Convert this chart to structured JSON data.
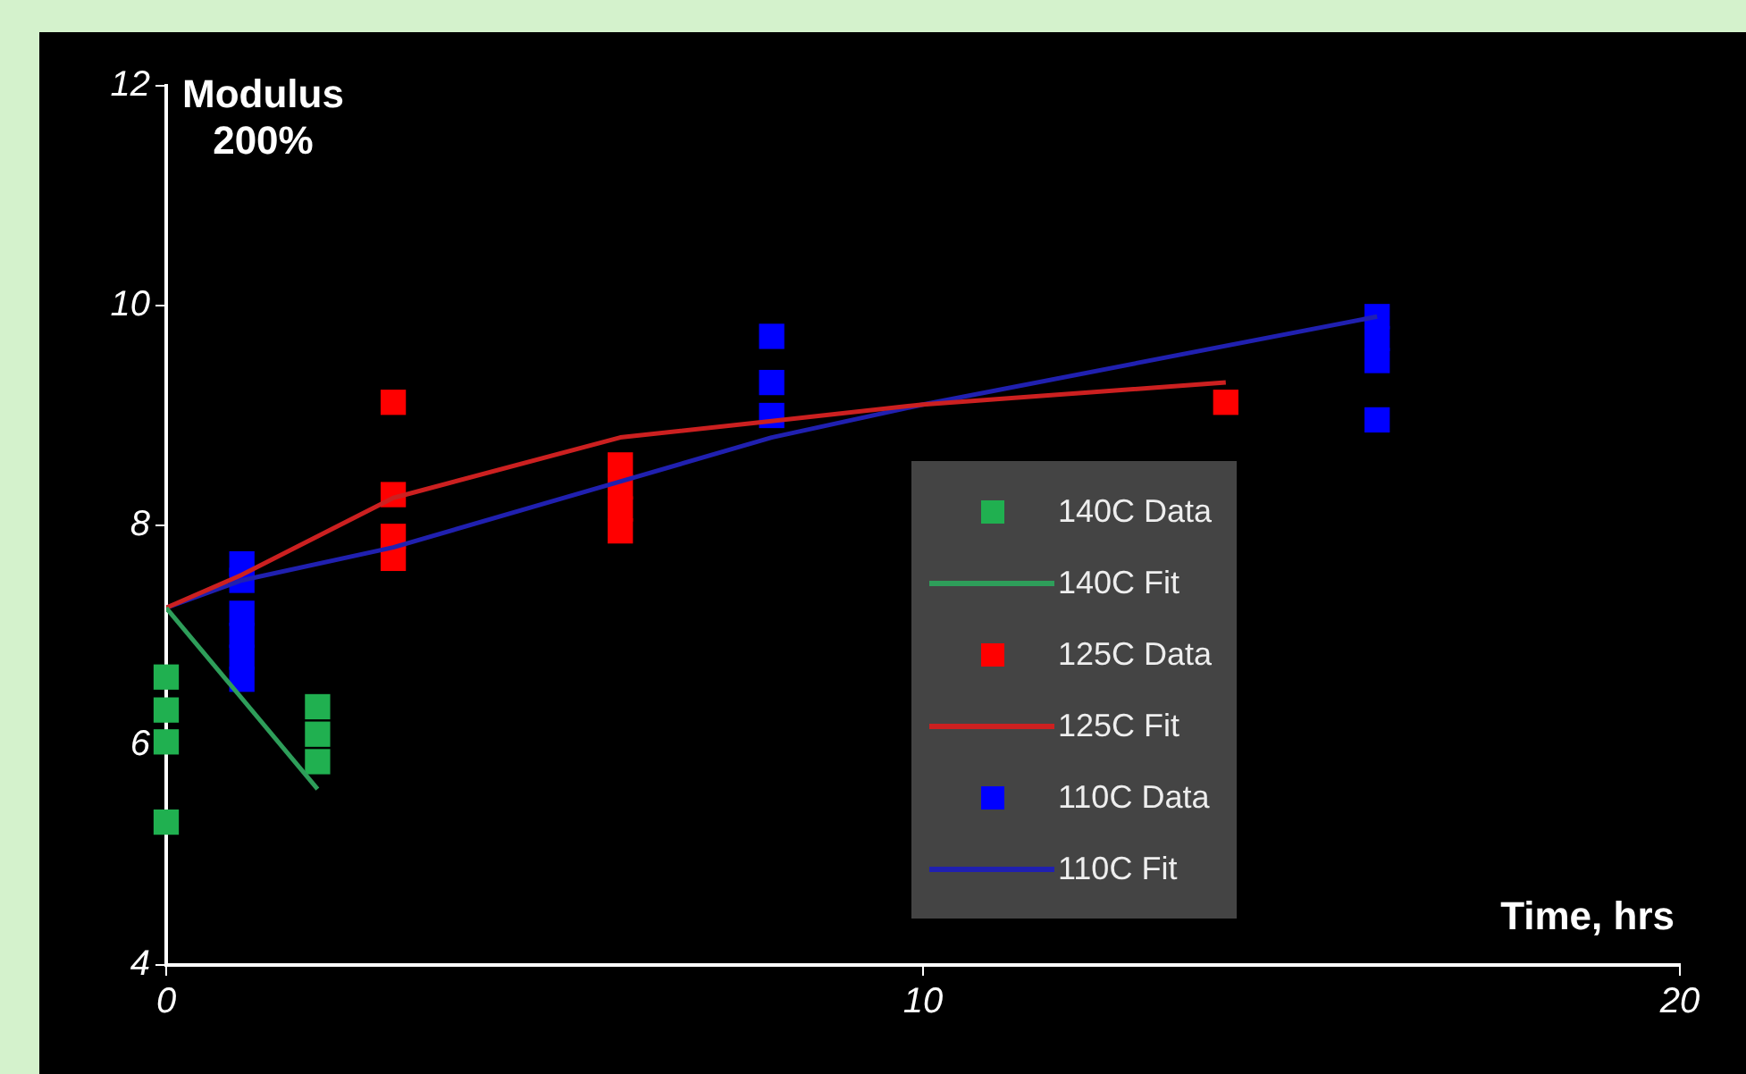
{
  "chart_data": {
    "type": "scatter",
    "title": "Modulus",
    "subtitle": "200%",
    "xlabel": "Time, hrs",
    "xlim": [
      0,
      20
    ],
    "xticks": [
      0,
      10,
      20
    ],
    "ylim": [
      4,
      12
    ],
    "yticks": [
      4,
      6,
      8,
      10,
      12
    ],
    "grid": false,
    "legend": "right",
    "series": [
      {
        "name": "140C Data",
        "type": "scatter",
        "marker": "square",
        "color": "#20b050",
        "x": [
          0,
          0,
          0,
          0,
          2,
          2,
          2
        ],
        "values": [
          6.62,
          6.32,
          6.03,
          5.3,
          6.35,
          6.1,
          5.85
        ]
      },
      {
        "name": "140C Fit",
        "type": "line",
        "color": "#2e9e5a",
        "x": [
          0,
          2
        ],
        "values": [
          7.25,
          5.6
        ]
      },
      {
        "name": "125C Data",
        "type": "scatter",
        "marker": "square",
        "color": "#ff0000",
        "x": [
          3,
          3,
          3,
          3,
          6,
          6,
          6,
          6,
          14
        ],
        "values": [
          9.12,
          8.28,
          7.9,
          7.7,
          8.55,
          8.35,
          8.15,
          7.95,
          9.12
        ]
      },
      {
        "name": "125C Fit",
        "type": "line",
        "color": "#cc2020",
        "x": [
          0,
          1,
          3,
          6,
          8,
          10,
          14
        ],
        "values": [
          7.25,
          7.55,
          8.25,
          8.8,
          8.95,
          9.1,
          9.3
        ]
      },
      {
        "name": "110C Data",
        "type": "scatter",
        "marker": "square",
        "color": "#0000ff",
        "x": [
          1,
          1,
          1,
          1,
          1,
          1,
          8,
          8,
          8,
          16,
          16,
          16,
          16
        ],
        "values": [
          7.65,
          7.5,
          7.2,
          7.0,
          6.8,
          6.6,
          9.72,
          9.3,
          9.0,
          9.9,
          9.7,
          9.5,
          8.96
        ]
      },
      {
        "name": "110C Fit",
        "type": "line",
        "color": "#2020b0",
        "x": [
          0,
          1,
          3,
          6,
          8,
          10,
          16
        ],
        "values": [
          7.25,
          7.5,
          7.8,
          8.4,
          8.8,
          9.1,
          9.9
        ]
      }
    ]
  }
}
